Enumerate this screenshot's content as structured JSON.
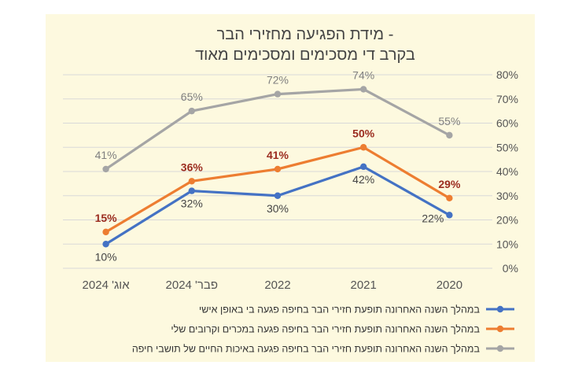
{
  "chart_data": {
    "type": "line",
    "title": [
      "מידת הפגיעה מחזירי הבר -",
      "בקרב די מסכימים ומסכימים מאוד"
    ],
    "categories": [
      "אוג' 2024",
      "פבר' 2024",
      "2022",
      "2021",
      "2020"
    ],
    "ylim": [
      0,
      80
    ],
    "yticks": [
      0,
      10,
      20,
      30,
      40,
      50,
      60,
      70,
      80
    ],
    "ytick_labels": [
      "0%",
      "10%",
      "20%",
      "30%",
      "40%",
      "50%",
      "60%",
      "70%",
      "80%"
    ],
    "grid": true,
    "legend_position": "bottom",
    "series": [
      {
        "name": "במהלך השנה האחרונה תופעת חזירי הבר בחיפה פגעה בי באופן אישי",
        "color": "#4472c4",
        "label_color": "#444444",
        "label_bold": false,
        "label_side": [
          "below",
          "below",
          "below",
          "below",
          "left"
        ],
        "values": [
          10,
          32,
          30,
          42,
          22
        ],
        "labels": [
          "10%",
          "32%",
          "30%",
          "42%",
          "22%"
        ]
      },
      {
        "name": "במהלך השנה האחרונה תופעת חזירי הבר בחיפה פגעה במכרים וקרובים שלי",
        "color": "#ed7d31",
        "label_color": "#9b2c1f",
        "label_bold": true,
        "label_side": [
          "above",
          "above",
          "above",
          "above",
          "above"
        ],
        "values": [
          15,
          36,
          41,
          50,
          29
        ],
        "labels": [
          "15%",
          "36%",
          "41%",
          "50%",
          "29%"
        ]
      },
      {
        "name": "במהלך השנה האחרונה תופעת חזירי הבר בחיפה פגעה באיכות החיים של תושבי חיפה",
        "color": "#a5a5a5",
        "label_color": "#7f7f7f",
        "label_bold": false,
        "label_side": [
          "above",
          "above",
          "above",
          "above",
          "above"
        ],
        "values": [
          41,
          65,
          72,
          74,
          55
        ],
        "labels": [
          "41%",
          "65%",
          "72%",
          "74%",
          "55%"
        ]
      }
    ]
  }
}
